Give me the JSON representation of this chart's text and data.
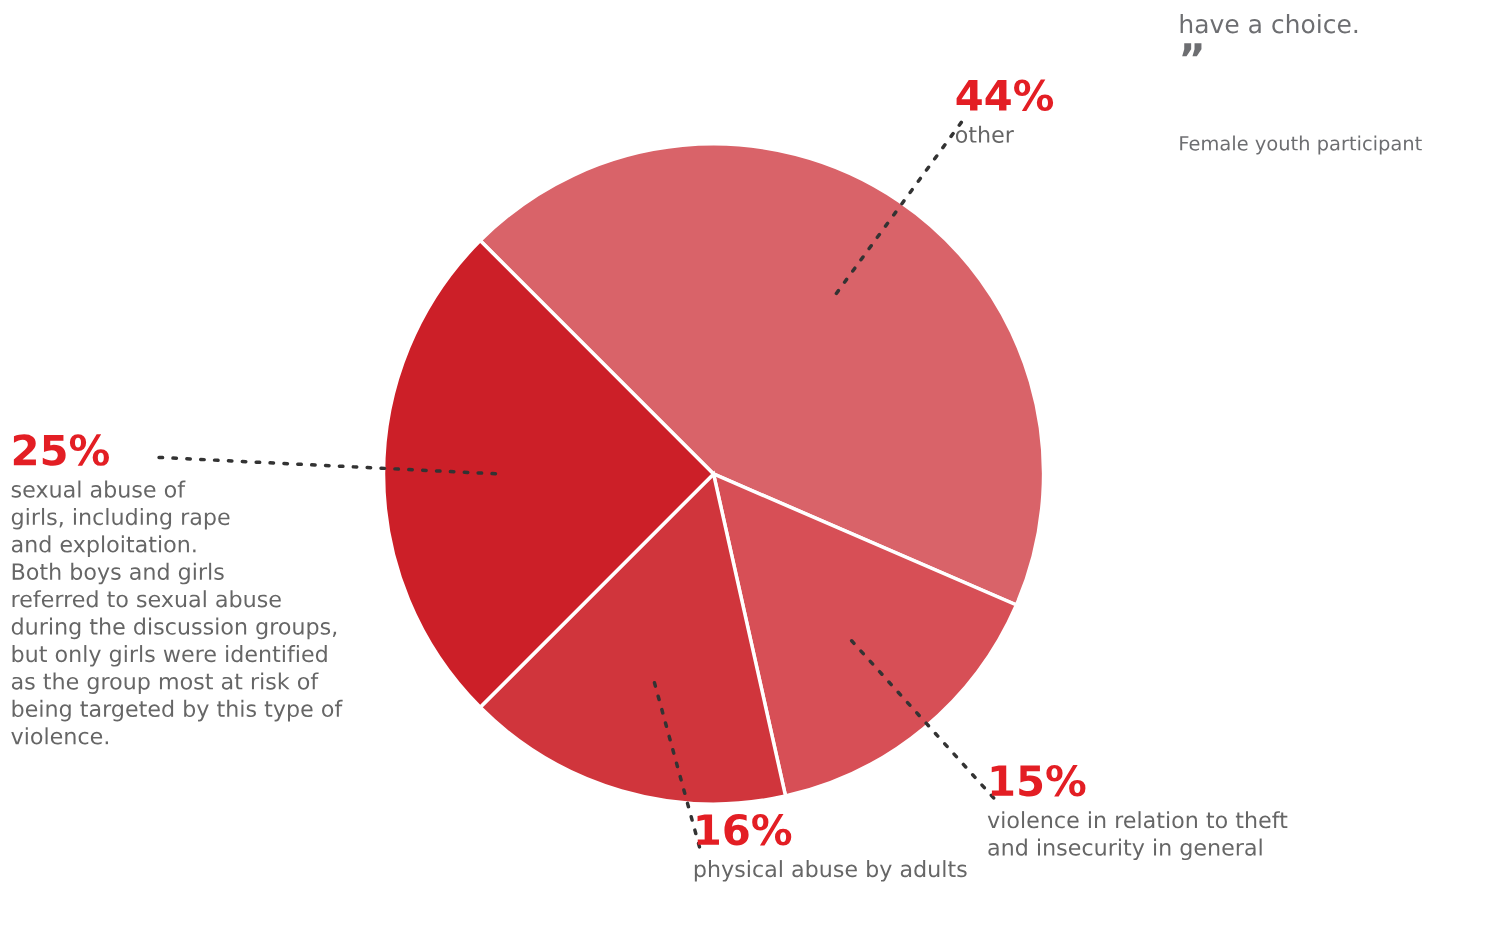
{
  "chart_data": {
    "type": "pie",
    "categories": [
      "other",
      "violence in relation to theft\nand insecurity in general",
      "physical abuse by adults",
      "sexual abuse of\ngirls, including rape\nand exploitation.\nBoth boys and girls\nreferred to sexual abuse\nduring the discussion groups,\nbut only girls were identified\nas the group most at risk of\nbeing targeted by this type of\nviolence."
    ],
    "values": [
      44,
      15,
      16,
      25
    ],
    "colors": [
      "#d96369",
      "#d74f56",
      "#d0353c",
      "#cc1f28"
    ],
    "value_labels": [
      "44%",
      "15%",
      "16%",
      "25%"
    ],
    "annotations": [
      "have a choice.",
      "”",
      "Female youth participant"
    ]
  }
}
